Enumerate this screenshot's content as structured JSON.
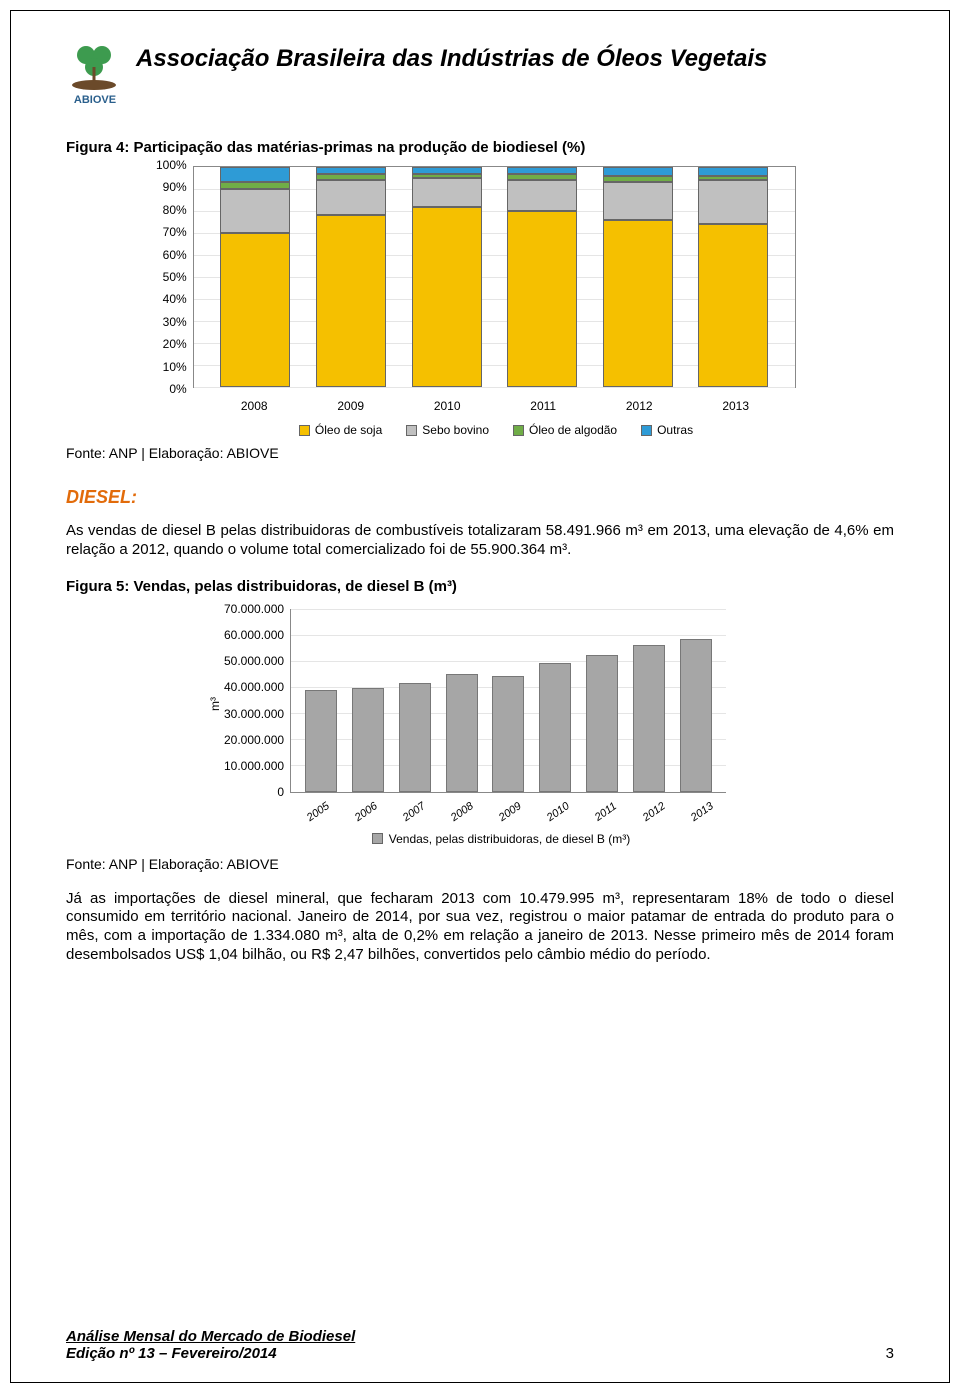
{
  "header": {
    "title": "Associação Brasileira das Indústrias de Óleos Vegetais",
    "logo_text": "ABIOVE",
    "logo_bg": "#ffffff",
    "logo_accent": "#2a7d3a"
  },
  "fig4": {
    "title": "Figura 4: Participação das matérias-primas na produção de biodiesel (%)",
    "type": "stacked-bar",
    "background_color": "#ffffff",
    "grid_color": "#e5e5e5",
    "border_color": "#888888",
    "y_ticks": [
      "100%",
      "90%",
      "80%",
      "70%",
      "60%",
      "50%",
      "40%",
      "30%",
      "20%",
      "10%",
      "0%"
    ],
    "ylim": [
      0,
      100
    ],
    "categories": [
      "2008",
      "2009",
      "2010",
      "2011",
      "2012",
      "2013"
    ],
    "legend": [
      {
        "label": "Óleo de soja",
        "color": "#f5c000"
      },
      {
        "label": "Sebo bovino",
        "color": "#c0c0c0"
      },
      {
        "label": "Óleo de algodão",
        "color": "#70ad47"
      },
      {
        "label": "Outras",
        "color": "#2e9bd6"
      }
    ],
    "series": [
      {
        "year": "2008",
        "soja": 70,
        "sebo": 20,
        "algodao": 3,
        "outras": 7
      },
      {
        "year": "2009",
        "soja": 78,
        "sebo": 16,
        "algodao": 3,
        "outras": 3
      },
      {
        "year": "2010",
        "soja": 82,
        "sebo": 13,
        "algodao": 2,
        "outras": 3
      },
      {
        "year": "2011",
        "soja": 80,
        "sebo": 14,
        "algodao": 3,
        "outras": 3
      },
      {
        "year": "2012",
        "soja": 76,
        "sebo": 17,
        "algodao": 3,
        "outras": 4
      },
      {
        "year": "2013",
        "soja": 74,
        "sebo": 20,
        "algodao": 2,
        "outras": 4
      }
    ],
    "source": "Fonte: ANP | Elaboração: ABIOVE"
  },
  "diesel": {
    "heading": "DIESEL:",
    "p1": "As vendas de diesel B pelas distribuidoras de combustíveis totalizaram 58.491.966 m³ em 2013, uma elevação de 4,6% em relação a 2012, quando o volume total comercializado foi de 55.900.364 m³."
  },
  "fig5": {
    "title": "Figura 5: Vendas, pelas distribuidoras, de diesel B (m³)",
    "type": "bar",
    "bar_color": "#a6a6a6",
    "background_color": "#ffffff",
    "grid_color": "#e5e5e5",
    "y_axis_label": "m³",
    "y_ticks": [
      "70.000.000",
      "60.000.000",
      "50.000.000",
      "40.000.000",
      "30.000.000",
      "20.000.000",
      "10.000.000",
      "0"
    ],
    "ylim": [
      0,
      70000000
    ],
    "categories": [
      "2005",
      "2006",
      "2007",
      "2008",
      "2009",
      "2010",
      "2011",
      "2012",
      "2013"
    ],
    "values": [
      39000000,
      39500000,
      41500000,
      44800000,
      44300000,
      49200000,
      52200000,
      55900000,
      58500000
    ],
    "legend_label": "Vendas, pelas distribuidoras, de diesel B (m³)",
    "source": "Fonte: ANP | Elaboração: ABIOVE"
  },
  "p_final": "Já as importações de diesel mineral, que fecharam 2013 com 10.479.995 m³, representaram 18% de todo o diesel consumido em território nacional. Janeiro de 2014, por sua vez, registrou o maior patamar de entrada do produto para o mês, com a importação de 1.334.080 m³, alta de 0,2% em relação a janeiro de 2013. Nesse primeiro mês de 2014 foram desembolsados US$ 1,04 bilhão, ou R$ 2,47 bilhões, convertidos pelo câmbio médio do período.",
  "footer": {
    "line1": "Análise Mensal do Mercado de Biodiesel",
    "line2": "Edição nº 13 – Fevereiro/2014",
    "page": "3"
  }
}
